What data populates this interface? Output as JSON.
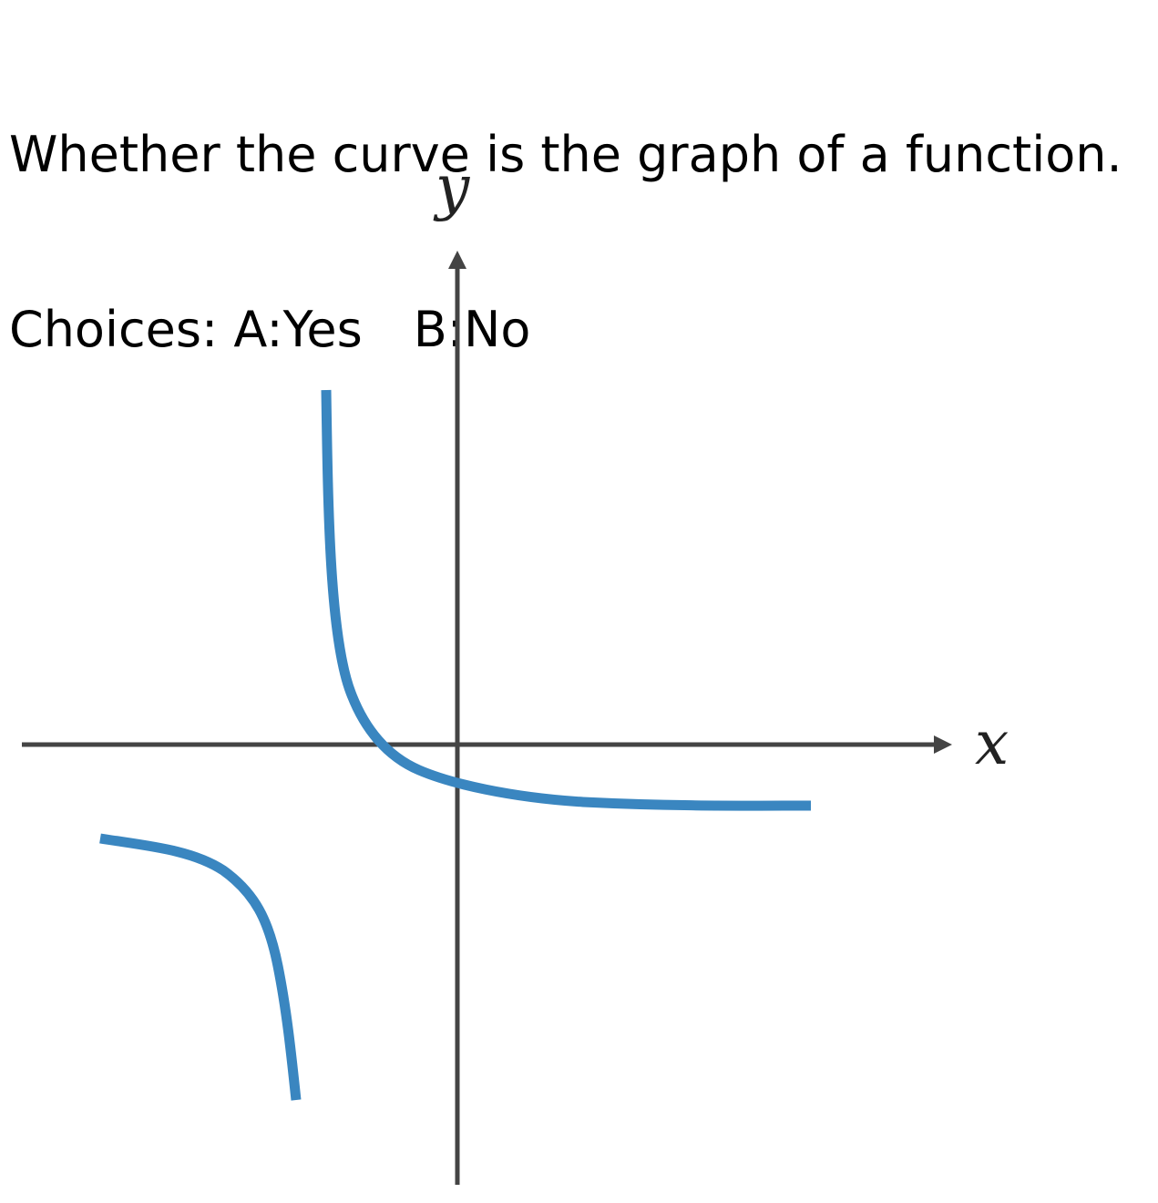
{
  "question": {
    "text": "Whether the curve is the graph of a function.",
    "choices_prefix": "Choices:",
    "choices": [
      {
        "key": "A",
        "label": "A:Yes"
      },
      {
        "key": "B",
        "label": "B:No"
      }
    ]
  },
  "graph": {
    "x_axis_label": "x",
    "y_axis_label": "y",
    "colors": {
      "curve": "#3a86c0",
      "axis": "#444444",
      "background": "#ffffff"
    }
  }
}
